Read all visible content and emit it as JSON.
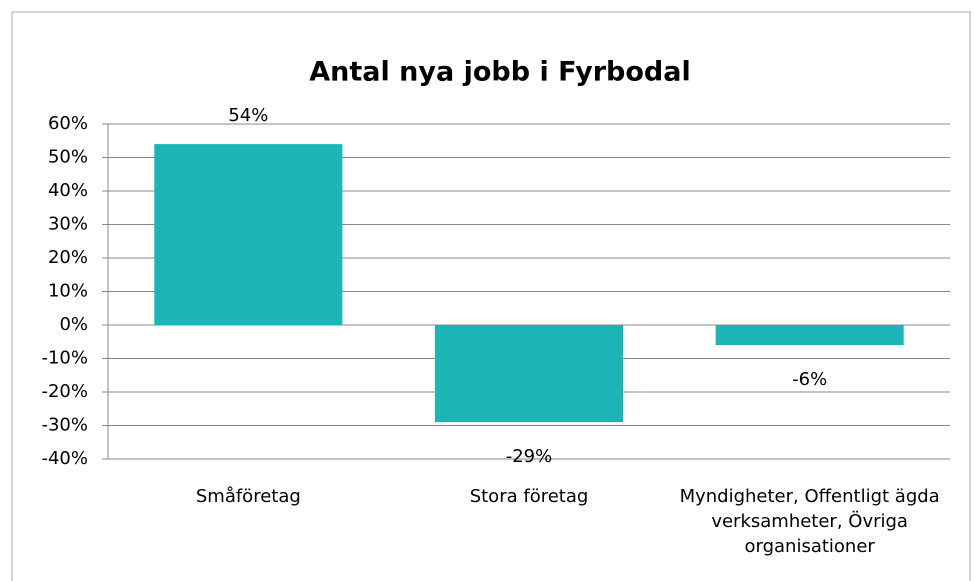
{
  "chart_data": {
    "type": "bar",
    "title": "Antal nya jobb i Fyrbodal",
    "categories": [
      "Småföretag",
      "Stora företag",
      "Myndigheter, Offentligt ägda verksamheter, Övriga organisationer"
    ],
    "values": [
      54,
      -29,
      -6
    ],
    "value_labels": [
      "54%",
      "-29%",
      "-6%"
    ],
    "color": "#1cb5b5",
    "ylim": [
      -40,
      60
    ],
    "yticks": [
      {
        "value": -40,
        "label": "-40%"
      },
      {
        "value": -30,
        "label": "-30%"
      },
      {
        "value": -20,
        "label": "-20%"
      },
      {
        "value": -10,
        "label": "-10%"
      },
      {
        "value": 0,
        "label": "0%"
      },
      {
        "value": 10,
        "label": "10%"
      },
      {
        "value": 20,
        "label": "20%"
      },
      {
        "value": 30,
        "label": "30%"
      },
      {
        "value": 40,
        "label": "40%"
      },
      {
        "value": 50,
        "label": "50%"
      },
      {
        "value": 60,
        "label": "60%"
      }
    ],
    "grid": true
  }
}
